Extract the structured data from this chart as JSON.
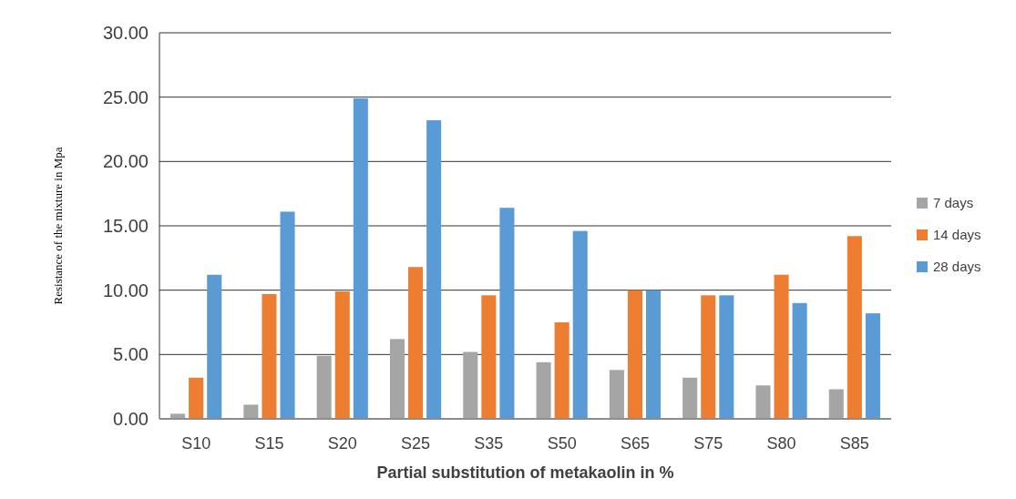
{
  "chart_data": {
    "type": "bar",
    "xlabel": "Partial substitution of metakaolin in %",
    "ylabel": "Resistance of the mixture in Mpa",
    "categories": [
      "S10",
      "S15",
      "S20",
      "S25",
      "S35",
      "S50",
      "S65",
      "S75",
      "S80",
      "S85"
    ],
    "series": [
      {
        "name": "7 days",
        "color": "#a5a5a5",
        "values": [
          0.4,
          1.1,
          4.9,
          6.2,
          5.2,
          4.4,
          3.8,
          3.2,
          2.6,
          2.3
        ]
      },
      {
        "name": "14 days",
        "color": "#ed7d31",
        "values": [
          3.2,
          9.7,
          9.9,
          11.8,
          9.6,
          7.5,
          10.0,
          9.6,
          11.2,
          14.2
        ]
      },
      {
        "name": "28 days",
        "color": "#5b9bd5",
        "values": [
          11.2,
          16.1,
          24.9,
          23.2,
          16.4,
          14.6,
          10.0,
          9.6,
          9.0,
          8.2
        ]
      }
    ],
    "ylim": [
      0,
      30
    ],
    "yticks": [
      {
        "value": 0,
        "label": "0.00"
      },
      {
        "value": 5,
        "label": "5.00"
      },
      {
        "value": 10,
        "label": "10.00"
      },
      {
        "value": 15,
        "label": "15.00"
      },
      {
        "value": 20,
        "label": "20.00"
      },
      {
        "value": 25,
        "label": "25.00"
      },
      {
        "value": 30,
        "label": "30.00"
      }
    ],
    "grid": "y",
    "legend": "right"
  }
}
